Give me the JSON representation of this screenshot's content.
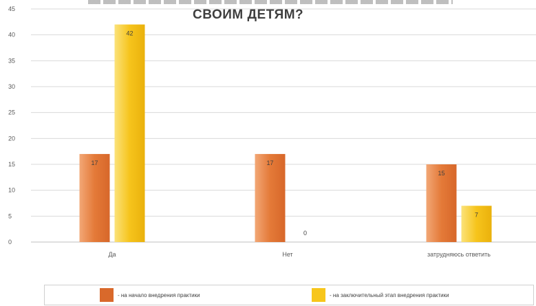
{
  "chart_data": {
    "type": "bar",
    "title": "СВОИМ ДЕТЯМ?",
    "categories": [
      "Да",
      "Нет",
      "затрудняюсь ответить"
    ],
    "series": [
      {
        "name": "- на начало внедрения практики",
        "values": [
          17,
          17,
          15
        ],
        "color": "#e07b3c"
      },
      {
        "name": "- на заключительный этап внедрения практики",
        "values": [
          42,
          0,
          7
        ],
        "color": "#f7c61b"
      }
    ],
    "y_ticks": [
      0,
      5,
      10,
      15,
      20,
      25,
      30,
      35,
      40,
      45
    ],
    "ylim": [
      0,
      45
    ],
    "grid": true,
    "legend_position": "bottom",
    "data_labels": true
  },
  "colors": {
    "series1": "#e07b3c",
    "series2": "#f7c61b",
    "grid": "#d9d9d9",
    "axis_text": "#595959"
  }
}
